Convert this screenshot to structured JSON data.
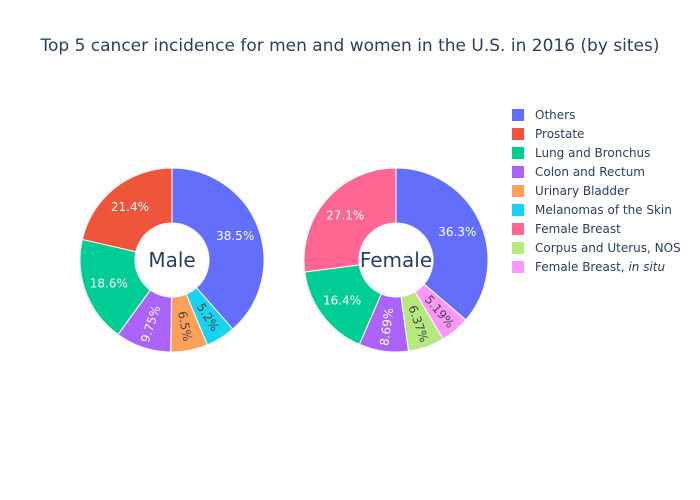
{
  "chart_data": {
    "type": "pie",
    "title": "Top 5 cancer incidence for men and women in the U.S. in 2016 (by sites)",
    "legend_position": "right",
    "legend": [
      {
        "name": "Others",
        "color": "#636efa"
      },
      {
        "name": "Prostate",
        "color": "#ef553b"
      },
      {
        "name": "Lung and Bronchus",
        "color": "#00cc96"
      },
      {
        "name": "Colon and Rectum",
        "color": "#ab63fa"
      },
      {
        "name": "Urinary Bladder",
        "color": "#ffa15a"
      },
      {
        "name": "Melanomas of the Skin",
        "color": "#19d3f3"
      },
      {
        "name": "Female Breast",
        "color": "#ff6692"
      },
      {
        "name": "Corpus and Uterus, NOS",
        "color": "#b6e880"
      },
      {
        "name": "Female Breast, ",
        "name_suffix_italic": "in situ",
        "color": "#ff97ff"
      }
    ],
    "pies": [
      {
        "label": "Male",
        "slices": [
          {
            "name": "Others",
            "value": 38.5,
            "text": "38.5%",
            "color": "#636efa"
          },
          {
            "name": "Melanomas of the Skin",
            "value": 5.2,
            "text": "5.2%",
            "color": "#19d3f3"
          },
          {
            "name": "Urinary Bladder",
            "value": 6.5,
            "text": "6.5%",
            "color": "#ffa15a"
          },
          {
            "name": "Colon and Rectum",
            "value": 9.75,
            "text": "9.75%",
            "color": "#ab63fa"
          },
          {
            "name": "Lung and Bronchus",
            "value": 18.6,
            "text": "18.6%",
            "color": "#00cc96"
          },
          {
            "name": "Prostate",
            "value": 21.4,
            "text": "21.4%",
            "color": "#ef553b"
          }
        ]
      },
      {
        "label": "Female",
        "slices": [
          {
            "name": "Others",
            "value": 36.3,
            "text": "36.3%",
            "color": "#636efa"
          },
          {
            "name": "Female Breast, in situ",
            "value": 5.19,
            "text": "5.19%",
            "color": "#ff97ff"
          },
          {
            "name": "Corpus and Uterus, NOS",
            "value": 6.37,
            "text": "6.37%",
            "color": "#b6e880"
          },
          {
            "name": "Colon and Rectum",
            "value": 8.69,
            "text": "8.69%",
            "color": "#ab63fa"
          },
          {
            "name": "Lung and Bronchus",
            "value": 16.4,
            "text": "16.4%",
            "color": "#00cc96"
          },
          {
            "name": "Female Breast",
            "value": 27.1,
            "text": "27.1%",
            "color": "#ff6692"
          }
        ]
      }
    ]
  }
}
